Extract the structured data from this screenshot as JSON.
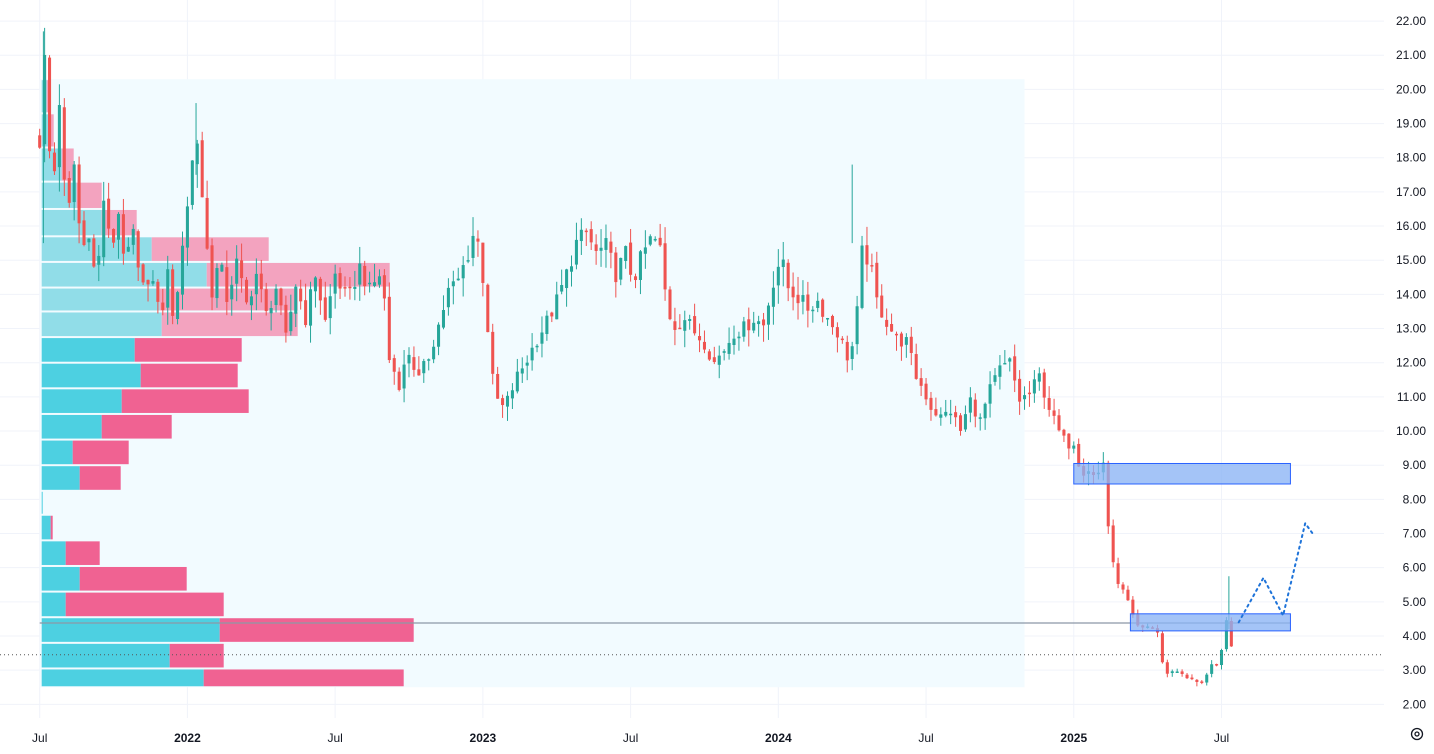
{
  "theme": {
    "background": "#ffffff",
    "grid": "#f0f3fa",
    "up": "#26a69a",
    "down": "#ef5350",
    "profile_bg": "#f2fbff",
    "vp_up": "#4dd0e1",
    "vp_down": "#f06292",
    "vp_up_va": "#91dde8",
    "vp_down_va": "#f3a3bf",
    "zone_fill": "#8bb4f5",
    "zone_border": "#2962ff",
    "forecast": "#1e73d9",
    "level_line": "#8c98a6",
    "price_line": "#555555",
    "axis_text": "#131722"
  },
  "axes": {
    "y_ticks": [
      "2.00",
      "3.00",
      "4.00",
      "5.00",
      "6.00",
      "7.00",
      "8.00",
      "9.00",
      "10.00",
      "11.00",
      "12.00",
      "13.00",
      "14.00",
      "15.00",
      "16.00",
      "17.00",
      "18.00",
      "19.00",
      "20.00",
      "21.00",
      "22.00"
    ],
    "x_ticks": [
      {
        "label": "Jul",
        "t": 0,
        "bold": false
      },
      {
        "label": "2022",
        "t": 6,
        "bold": true
      },
      {
        "label": "Jul",
        "t": 12,
        "bold": false
      },
      {
        "label": "2023",
        "t": 18,
        "bold": true
      },
      {
        "label": "Jul",
        "t": 24,
        "bold": false
      },
      {
        "label": "2024",
        "t": 30,
        "bold": true
      },
      {
        "label": "Jul",
        "t": 36,
        "bold": false
      },
      {
        "label": "2025",
        "t": 42,
        "bold": true
      },
      {
        "label": "Jul",
        "t": 48,
        "bold": false
      }
    ]
  },
  "chart_data": {
    "type": "candlestick",
    "x_unit": "months since Jul 2021",
    "ylim": [
      1.6,
      22.5
    ],
    "xlim": [
      -0.15,
      54.6
    ],
    "price_path": [
      [
        0,
        18.5
      ],
      [
        0.15,
        21.4
      ],
      [
        0.3,
        19.7
      ],
      [
        0.5,
        16.6
      ],
      [
        0.8,
        19.7
      ],
      [
        1.1,
        15.9
      ],
      [
        1.4,
        17.8
      ],
      [
        1.7,
        15.2
      ],
      [
        2.0,
        15.9
      ],
      [
        2.3,
        14.2
      ],
      [
        2.6,
        16.8
      ],
      [
        2.9,
        15.2
      ],
      [
        3.2,
        16.4
      ],
      [
        3.5,
        14.8
      ],
      [
        3.8,
        15.8
      ],
      [
        4.1,
        14.0
      ],
      [
        4.5,
        14.7
      ],
      [
        4.9,
        13.2
      ],
      [
        5.2,
        14.6
      ],
      [
        5.5,
        13.0
      ],
      [
        5.8,
        15.6
      ],
      [
        6.1,
        17.2
      ],
      [
        6.35,
        18.9
      ],
      [
        6.6,
        16.9
      ],
      [
        6.8,
        15.3
      ],
      [
        7.0,
        14.1
      ],
      [
        7.3,
        15.0
      ],
      [
        7.6,
        13.9
      ],
      [
        8.0,
        14.9
      ],
      [
        8.4,
        13.7
      ],
      [
        8.8,
        14.6
      ],
      [
        9.2,
        13.4
      ],
      [
        9.6,
        14.2
      ],
      [
        10.0,
        12.7
      ],
      [
        10.4,
        14.3
      ],
      [
        10.8,
        13.3
      ],
      [
        11.2,
        14.6
      ],
      [
        11.6,
        13.2
      ],
      [
        12.0,
        14.6
      ],
      [
        12.5,
        13.8
      ],
      [
        13.0,
        14.8
      ],
      [
        13.4,
        14.1
      ],
      [
        13.9,
        14.7
      ],
      [
        14.2,
        12.1
      ],
      [
        14.6,
        11.4
      ],
      [
        15.0,
        12.3
      ],
      [
        15.4,
        11.5
      ],
      [
        15.8,
        12.2
      ],
      [
        16.2,
        13.1
      ],
      [
        16.6,
        14.1
      ],
      [
        17.0,
        14.4
      ],
      [
        17.4,
        15.2
      ],
      [
        17.7,
        16.0
      ],
      [
        18.0,
        14.5
      ],
      [
        18.4,
        11.5
      ],
      [
        18.7,
        10.6
      ],
      [
        19.0,
        10.9
      ],
      [
        19.4,
        11.6
      ],
      [
        19.8,
        12.1
      ],
      [
        20.2,
        12.7
      ],
      [
        20.6,
        13.2
      ],
      [
        21.0,
        13.8
      ],
      [
        21.4,
        14.6
      ],
      [
        21.8,
        15.5
      ],
      [
        22.2,
        15.8
      ],
      [
        22.6,
        15.2
      ],
      [
        23.0,
        15.4
      ],
      [
        23.4,
        14.6
      ],
      [
        23.8,
        15.2
      ],
      [
        24.1,
        14.4
      ],
      [
        24.5,
        15.2
      ],
      [
        24.9,
        15.7
      ],
      [
        25.2,
        15.3
      ],
      [
        25.5,
        13.5
      ],
      [
        25.8,
        13.1
      ],
      [
        26.2,
        13.3
      ],
      [
        26.6,
        12.9
      ],
      [
        27.0,
        12.6
      ],
      [
        27.4,
        12.0
      ],
      [
        27.8,
        12.4
      ],
      [
        28.2,
        12.9
      ],
      [
        28.6,
        13.0
      ],
      [
        29.0,
        13.3
      ],
      [
        29.4,
        13.1
      ],
      [
        29.8,
        14.4
      ],
      [
        30.1,
        15.1
      ],
      [
        30.4,
        14.2
      ],
      [
        30.8,
        13.9
      ],
      [
        31.2,
        13.6
      ],
      [
        31.6,
        13.8
      ],
      [
        32.0,
        13.3
      ],
      [
        32.4,
        12.9
      ],
      [
        32.8,
        12.2
      ],
      [
        33.1,
        12.6
      ],
      [
        33.4,
        15.2
      ],
      [
        33.7,
        15.0
      ],
      [
        34.0,
        13.8
      ],
      [
        34.4,
        13.2
      ],
      [
        34.8,
        12.7
      ],
      [
        35.2,
        12.6
      ],
      [
        35.6,
        11.6
      ],
      [
        35.9,
        11.2
      ],
      [
        36.2,
        10.7
      ],
      [
        36.6,
        10.4
      ],
      [
        37.0,
        10.6
      ],
      [
        37.4,
        10.0
      ],
      [
        37.8,
        10.9
      ],
      [
        38.2,
        10.3
      ],
      [
        38.6,
        11.2
      ],
      [
        39.0,
        11.8
      ],
      [
        39.4,
        12.0
      ],
      [
        39.8,
        10.9
      ],
      [
        40.2,
        11.1
      ],
      [
        40.6,
        11.6
      ],
      [
        40.9,
        10.9
      ],
      [
        41.3,
        10.1
      ],
      [
        41.7,
        9.6
      ],
      [
        42.0,
        9.7
      ],
      [
        42.3,
        8.8
      ],
      [
        42.6,
        8.9
      ],
      [
        42.9,
        8.6
      ],
      [
        43.2,
        9.1
      ],
      [
        43.5,
        6.3
      ],
      [
        43.8,
        5.6
      ],
      [
        44.2,
        5.0
      ],
      [
        44.5,
        4.3
      ],
      [
        44.8,
        4.2
      ],
      [
        45.1,
        4.3
      ],
      [
        45.4,
        4.1
      ],
      [
        45.7,
        2.8
      ],
      [
        46.0,
        3.0
      ],
      [
        46.4,
        2.9
      ],
      [
        46.8,
        2.7
      ],
      [
        47.2,
        2.6
      ],
      [
        47.6,
        3.2
      ],
      [
        47.9,
        3.1
      ],
      [
        48.2,
        4.4
      ],
      [
        48.5,
        3.3
      ]
    ],
    "volume_profile": {
      "range": [
        2.5,
        20.3
      ],
      "x_end": 40.0,
      "rows": [
        {
          "lo": 19.3,
          "hi": 20.3,
          "up": 5,
          "down": 3,
          "va": true
        },
        {
          "lo": 18.3,
          "hi": 19.3,
          "up": 8,
          "down": 4,
          "va": true
        },
        {
          "lo": 17.3,
          "hi": 18.3,
          "up": 20,
          "down": 12,
          "va": true
        },
        {
          "lo": 16.5,
          "hi": 17.3,
          "up": 35,
          "down": 25,
          "va": true
        },
        {
          "lo": 15.7,
          "hi": 16.5,
          "up": 60,
          "down": 35,
          "va": true
        },
        {
          "lo": 14.95,
          "hi": 15.7,
          "up": 110,
          "down": 117,
          "va": true
        },
        {
          "lo": 14.2,
          "hi": 14.95,
          "up": 165,
          "down": 183,
          "va": true
        },
        {
          "lo": 13.5,
          "hi": 14.2,
          "up": 118,
          "down": 138,
          "va": true
        },
        {
          "lo": 12.75,
          "hi": 13.5,
          "up": 120,
          "down": 136,
          "va": true
        },
        {
          "lo": 12.0,
          "hi": 12.75,
          "up": 93,
          "down": 107,
          "va": false
        },
        {
          "lo": 11.25,
          "hi": 12.0,
          "up": 99,
          "down": 97,
          "va": false
        },
        {
          "lo": 10.5,
          "hi": 11.25,
          "up": 80,
          "down": 127,
          "va": false
        },
        {
          "lo": 9.75,
          "hi": 10.5,
          "up": 60,
          "down": 70,
          "va": false
        },
        {
          "lo": 9.0,
          "hi": 9.75,
          "up": 31,
          "down": 56,
          "va": false
        },
        {
          "lo": 8.25,
          "hi": 9.0,
          "up": 38,
          "down": 41,
          "va": false
        },
        {
          "lo": 7.55,
          "hi": 8.25,
          "up": 1,
          "down": 0,
          "va": false
        },
        {
          "lo": 6.8,
          "hi": 7.55,
          "up": 9,
          "down": 2,
          "va": false
        },
        {
          "lo": 6.05,
          "hi": 6.8,
          "up": 24,
          "down": 34,
          "va": false
        },
        {
          "lo": 5.3,
          "hi": 6.05,
          "up": 38,
          "down": 107,
          "va": false
        },
        {
          "lo": 4.55,
          "hi": 5.3,
          "up": 24,
          "down": 158,
          "va": false
        },
        {
          "lo": 3.8,
          "hi": 4.55,
          "up": 178,
          "down": 194,
          "va": false
        },
        {
          "lo": 3.05,
          "hi": 3.8,
          "up": 128,
          "down": 54,
          "va": false
        },
        {
          "lo": 2.5,
          "hi": 3.05,
          "up": 162,
          "down": 200,
          "va": false
        }
      ]
    },
    "zones": [
      {
        "x1": 42.0,
        "x2": 50.8,
        "y_lo": 8.45,
        "y_hi": 9.05
      },
      {
        "x1": 44.3,
        "x2": 50.8,
        "y_lo": 4.15,
        "y_hi": 4.65
      }
    ],
    "horizontal_level": {
      "price": 4.38,
      "x1": 0.0,
      "x2": 50.8
    },
    "last_price_line": 3.45,
    "forecast_path": [
      [
        48.7,
        4.4
      ],
      [
        49.7,
        5.7
      ],
      [
        50.5,
        4.6
      ],
      [
        51.4,
        7.3
      ],
      [
        51.7,
        7.0
      ]
    ]
  },
  "settings_icon": "gear-icon"
}
